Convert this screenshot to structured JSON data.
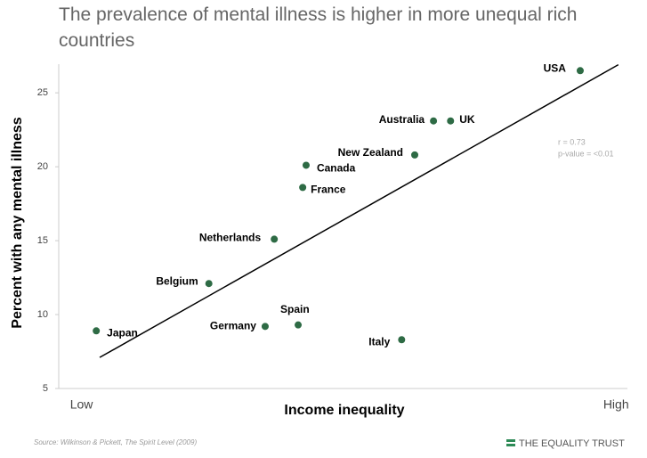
{
  "chart_data": {
    "type": "scatter",
    "title": "The prevalence of mental illness is higher in more unequal rich countries",
    "x_label": "Income inequality",
    "y_label": "Percent with any mental illness",
    "labels": [
      "USA",
      "Australia",
      "UK",
      "New Zealand",
      "Canada",
      "France",
      "Netherlands",
      "Belgium",
      "Japan",
      "Germany",
      "Spain",
      "Italy"
    ],
    "x": [
      91.7,
      65.9,
      68.9,
      62.6,
      43.5,
      42.9,
      37.9,
      26.4,
      6.6,
      36.3,
      42.1,
      60.3
    ],
    "values": [
      26.5,
      23.1,
      23.1,
      20.8,
      20.1,
      18.6,
      15.1,
      12.1,
      8.9,
      9.2,
      9.3,
      8.3
    ],
    "color": "#2e6b45",
    "trend_line": {
      "x": [
        7.2,
        98.4
      ],
      "values": [
        7.1,
        26.9
      ],
      "color": "#000000"
    },
    "annotations": [
      "r = 0.73",
      "p-value = <0.01"
    ],
    "xlim": [
      0,
      100
    ],
    "xticks": [
      {
        "value": 4,
        "label": "Low"
      },
      {
        "value": 98,
        "label": "High"
      }
    ],
    "ylim": [
      5,
      27
    ],
    "yticks": [
      5,
      10,
      15,
      20,
      25
    ],
    "source": "Source: Wilkinson & Pickett, The Spirit Level (2009)",
    "logo": "THE EQUALITY TRUST"
  }
}
